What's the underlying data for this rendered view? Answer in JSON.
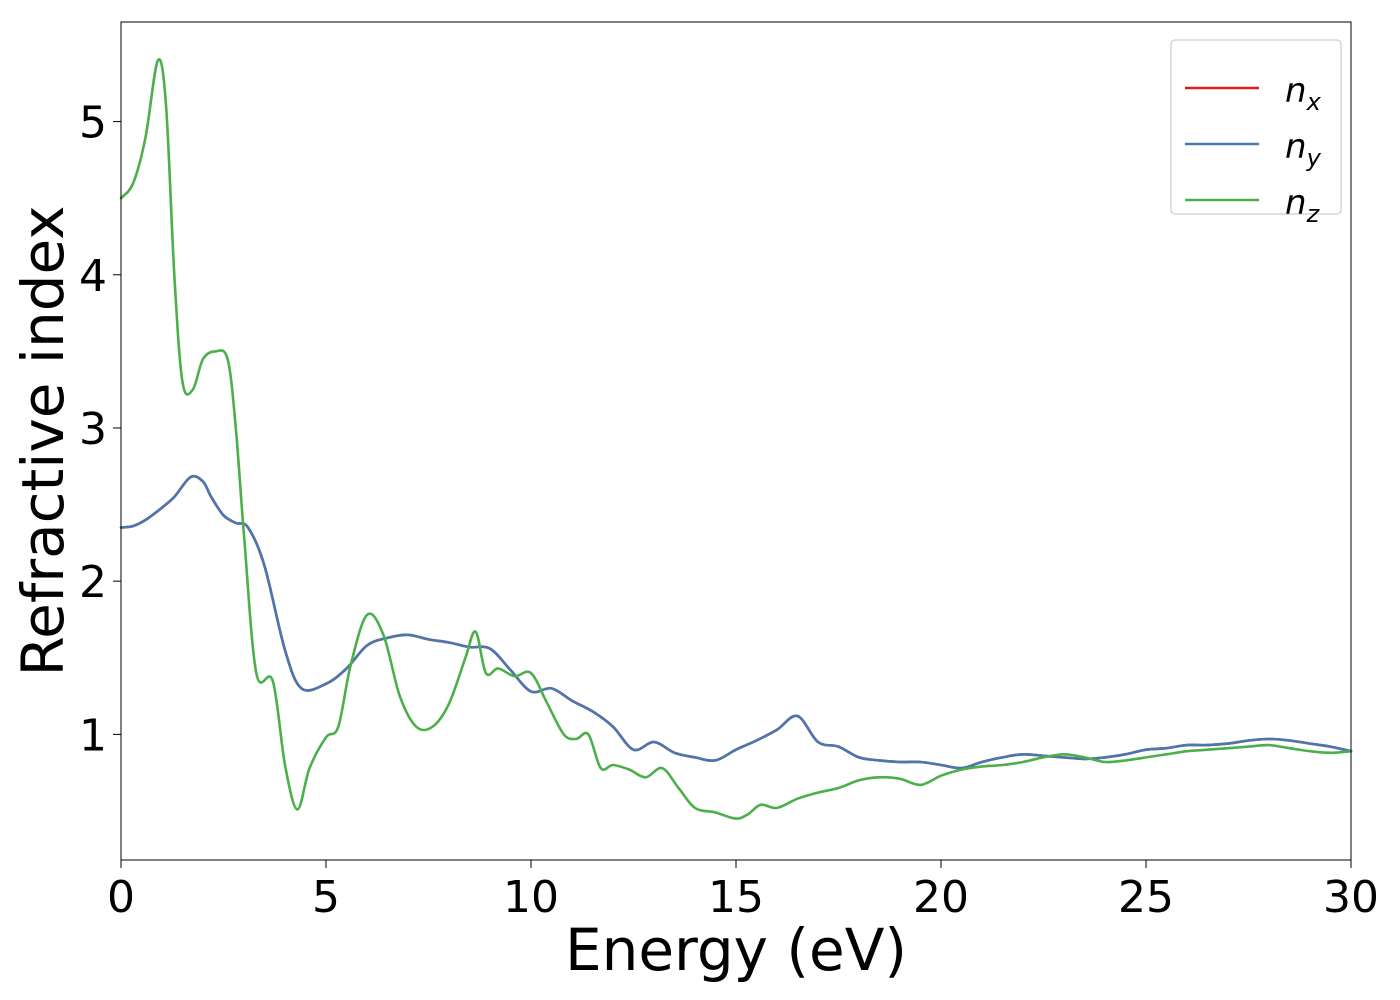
{
  "chart_data": {
    "type": "line",
    "xlabel": "Energy (eV)",
    "ylabel": "Refractive index",
    "xlim": [
      0,
      30
    ],
    "ylim": [
      0.18,
      5.65
    ],
    "xticks": [
      0,
      5,
      10,
      15,
      20,
      25,
      30
    ],
    "yticks": [
      1,
      2,
      3,
      4,
      5
    ],
    "grid": false,
    "legend": "top-right",
    "series": [
      {
        "name": "n_x",
        "label_base": "n",
        "label_sub": "x",
        "color": "#e41a1c",
        "x": [
          0,
          0.3,
          0.6,
          1.0,
          1.3,
          1.7,
          2.0,
          2.2,
          2.5,
          2.8,
          3.1,
          3.5,
          4.0,
          4.4,
          5.0,
          5.5,
          6.0,
          6.5,
          7.0,
          7.5,
          8.0,
          8.5,
          9.0,
          9.5,
          10.0,
          10.5,
          11.0,
          11.5,
          12.0,
          12.5,
          13.0,
          13.5,
          14.0,
          14.5,
          15.0,
          15.5,
          16.0,
          16.5,
          17.0,
          17.5,
          18.0,
          18.5,
          19.0,
          19.5,
          20.0,
          20.5,
          21.0,
          21.5,
          22.0,
          22.5,
          23.0,
          23.5,
          24.0,
          24.5,
          25.0,
          25.5,
          26.0,
          26.5,
          27.0,
          27.5,
          28.0,
          28.5,
          29.0,
          29.5,
          30.0
        ],
        "y": [
          2.35,
          2.36,
          2.4,
          2.48,
          2.55,
          2.68,
          2.65,
          2.55,
          2.43,
          2.38,
          2.35,
          2.1,
          1.55,
          1.3,
          1.33,
          1.43,
          1.58,
          1.63,
          1.65,
          1.62,
          1.6,
          1.57,
          1.56,
          1.42,
          1.28,
          1.3,
          1.22,
          1.15,
          1.05,
          0.9,
          0.95,
          0.88,
          0.85,
          0.83,
          0.9,
          0.96,
          1.03,
          1.12,
          0.95,
          0.92,
          0.85,
          0.83,
          0.82,
          0.82,
          0.8,
          0.78,
          0.82,
          0.85,
          0.87,
          0.86,
          0.85,
          0.84,
          0.85,
          0.87,
          0.9,
          0.91,
          0.93,
          0.93,
          0.94,
          0.96,
          0.97,
          0.96,
          0.94,
          0.92,
          0.89
        ]
      },
      {
        "name": "n_y",
        "label_base": "n",
        "label_sub": "y",
        "color": "#4878b0",
        "x": [
          0,
          0.3,
          0.6,
          1.0,
          1.3,
          1.7,
          2.0,
          2.2,
          2.5,
          2.8,
          3.1,
          3.5,
          4.0,
          4.4,
          5.0,
          5.5,
          6.0,
          6.5,
          7.0,
          7.5,
          8.0,
          8.5,
          9.0,
          9.5,
          10.0,
          10.5,
          11.0,
          11.5,
          12.0,
          12.5,
          13.0,
          13.5,
          14.0,
          14.5,
          15.0,
          15.5,
          16.0,
          16.5,
          17.0,
          17.5,
          18.0,
          18.5,
          19.0,
          19.5,
          20.0,
          20.5,
          21.0,
          21.5,
          22.0,
          22.5,
          23.0,
          23.5,
          24.0,
          24.5,
          25.0,
          25.5,
          26.0,
          26.5,
          27.0,
          27.5,
          28.0,
          28.5,
          29.0,
          29.5,
          30.0
        ],
        "y": [
          2.35,
          2.36,
          2.4,
          2.48,
          2.55,
          2.68,
          2.65,
          2.55,
          2.43,
          2.38,
          2.35,
          2.1,
          1.55,
          1.3,
          1.33,
          1.43,
          1.58,
          1.63,
          1.65,
          1.62,
          1.6,
          1.57,
          1.56,
          1.42,
          1.28,
          1.3,
          1.22,
          1.15,
          1.05,
          0.9,
          0.95,
          0.88,
          0.85,
          0.83,
          0.9,
          0.96,
          1.03,
          1.12,
          0.95,
          0.92,
          0.85,
          0.83,
          0.82,
          0.82,
          0.8,
          0.78,
          0.82,
          0.85,
          0.87,
          0.86,
          0.85,
          0.84,
          0.85,
          0.87,
          0.9,
          0.91,
          0.93,
          0.93,
          0.94,
          0.96,
          0.97,
          0.96,
          0.94,
          0.92,
          0.89
        ]
      },
      {
        "name": "n_z",
        "label_base": "n",
        "label_sub": "z",
        "color": "#4daf4a",
        "x": [
          0,
          0.3,
          0.6,
          0.9,
          1.1,
          1.3,
          1.5,
          1.75,
          2.0,
          2.3,
          2.6,
          2.8,
          3.0,
          3.3,
          3.7,
          4.0,
          4.3,
          4.6,
          5.0,
          5.3,
          5.6,
          6.0,
          6.4,
          6.8,
          7.2,
          7.6,
          8.0,
          8.4,
          8.65,
          8.9,
          9.2,
          9.6,
          10.0,
          10.4,
          10.8,
          11.1,
          11.4,
          11.7,
          12.0,
          12.4,
          12.8,
          13.2,
          13.6,
          14.0,
          14.5,
          15.0,
          15.3,
          15.6,
          16.0,
          16.5,
          17.0,
          17.5,
          18.0,
          18.5,
          19.0,
          19.5,
          20.0,
          20.5,
          21.0,
          21.5,
          22.0,
          22.5,
          23.0,
          23.5,
          24.0,
          24.5,
          25.0,
          25.5,
          26.0,
          26.5,
          27.0,
          27.5,
          28.0,
          28.5,
          29.0,
          29.5,
          30.0
        ],
        "y": [
          4.5,
          4.6,
          4.9,
          5.4,
          5.1,
          4.0,
          3.3,
          3.25,
          3.45,
          3.5,
          3.45,
          3.0,
          2.3,
          1.4,
          1.35,
          0.8,
          0.51,
          0.78,
          0.98,
          1.05,
          1.45,
          1.78,
          1.65,
          1.25,
          1.05,
          1.05,
          1.2,
          1.5,
          1.67,
          1.4,
          1.43,
          1.38,
          1.4,
          1.2,
          1.0,
          0.97,
          1.0,
          0.78,
          0.8,
          0.77,
          0.72,
          0.78,
          0.65,
          0.52,
          0.49,
          0.45,
          0.48,
          0.54,
          0.52,
          0.58,
          0.62,
          0.65,
          0.7,
          0.72,
          0.71,
          0.67,
          0.73,
          0.77,
          0.79,
          0.8,
          0.82,
          0.85,
          0.87,
          0.85,
          0.82,
          0.83,
          0.85,
          0.87,
          0.89,
          0.9,
          0.91,
          0.92,
          0.93,
          0.91,
          0.89,
          0.88,
          0.89
        ]
      }
    ]
  }
}
